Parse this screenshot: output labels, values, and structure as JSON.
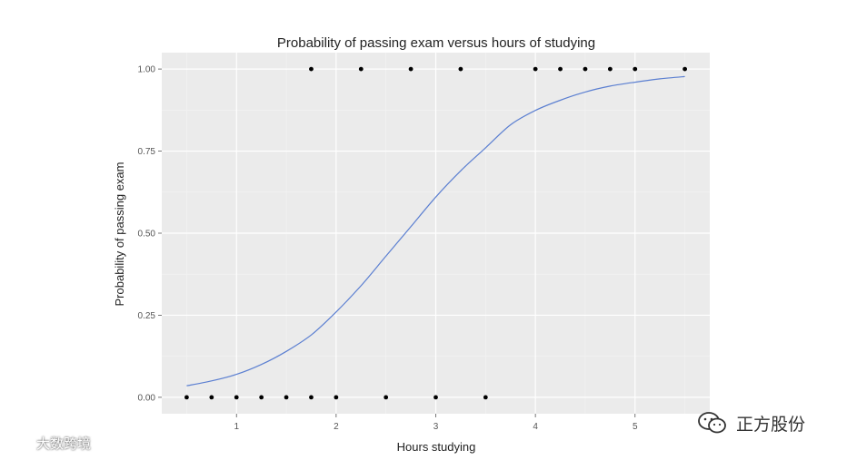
{
  "chart_data": {
    "type": "scatter",
    "title": "Probability of passing exam versus hours of studying",
    "xlabel": "Hours studying",
    "ylabel": "Probability of passing exam",
    "xlim": [
      0.25,
      5.75
    ],
    "ylim": [
      -0.05,
      1.05
    ],
    "x_ticks": [
      1,
      2,
      3,
      4,
      5
    ],
    "x_tick_labels": [
      "1",
      "2",
      "3",
      "4",
      "5"
    ],
    "y_ticks": [
      0,
      0.25,
      0.5,
      0.75,
      1.0
    ],
    "y_tick_labels": [
      "0.00",
      "0.25",
      "0.50",
      "0.75",
      "1.00"
    ],
    "grid": true,
    "background": "#ebebeb",
    "points": {
      "x": [
        0.5,
        0.75,
        1.0,
        1.25,
        1.5,
        1.75,
        1.75,
        2.0,
        2.25,
        2.5,
        2.75,
        3.0,
        3.25,
        3.5,
        4.0,
        4.25,
        4.5,
        4.75,
        5.0,
        5.5
      ],
      "y": [
        0,
        0,
        0,
        0,
        0,
        0,
        1,
        0,
        1,
        0,
        1,
        0,
        1,
        0,
        1,
        1,
        1,
        1,
        1,
        1
      ],
      "color": "#000000"
    },
    "curve": {
      "type": "logistic",
      "color": "#5b7fd1",
      "x": [
        0.5,
        0.75,
        1.0,
        1.25,
        1.5,
        1.75,
        2.0,
        2.25,
        2.5,
        2.75,
        3.0,
        3.25,
        3.5,
        3.75,
        4.0,
        4.25,
        4.5,
        4.75,
        5.0,
        5.25,
        5.5
      ],
      "y": [
        0.035,
        0.05,
        0.07,
        0.1,
        0.14,
        0.19,
        0.26,
        0.34,
        0.43,
        0.52,
        0.61,
        0.69,
        0.76,
        0.83,
        0.874,
        0.905,
        0.93,
        0.948,
        0.96,
        0.97,
        0.977
      ]
    }
  },
  "watermarks": {
    "left_text": "大数跨境",
    "right_text": "正方股份",
    "left_icon": "circle-logo-icon",
    "right_icon": "wechat-icon"
  }
}
